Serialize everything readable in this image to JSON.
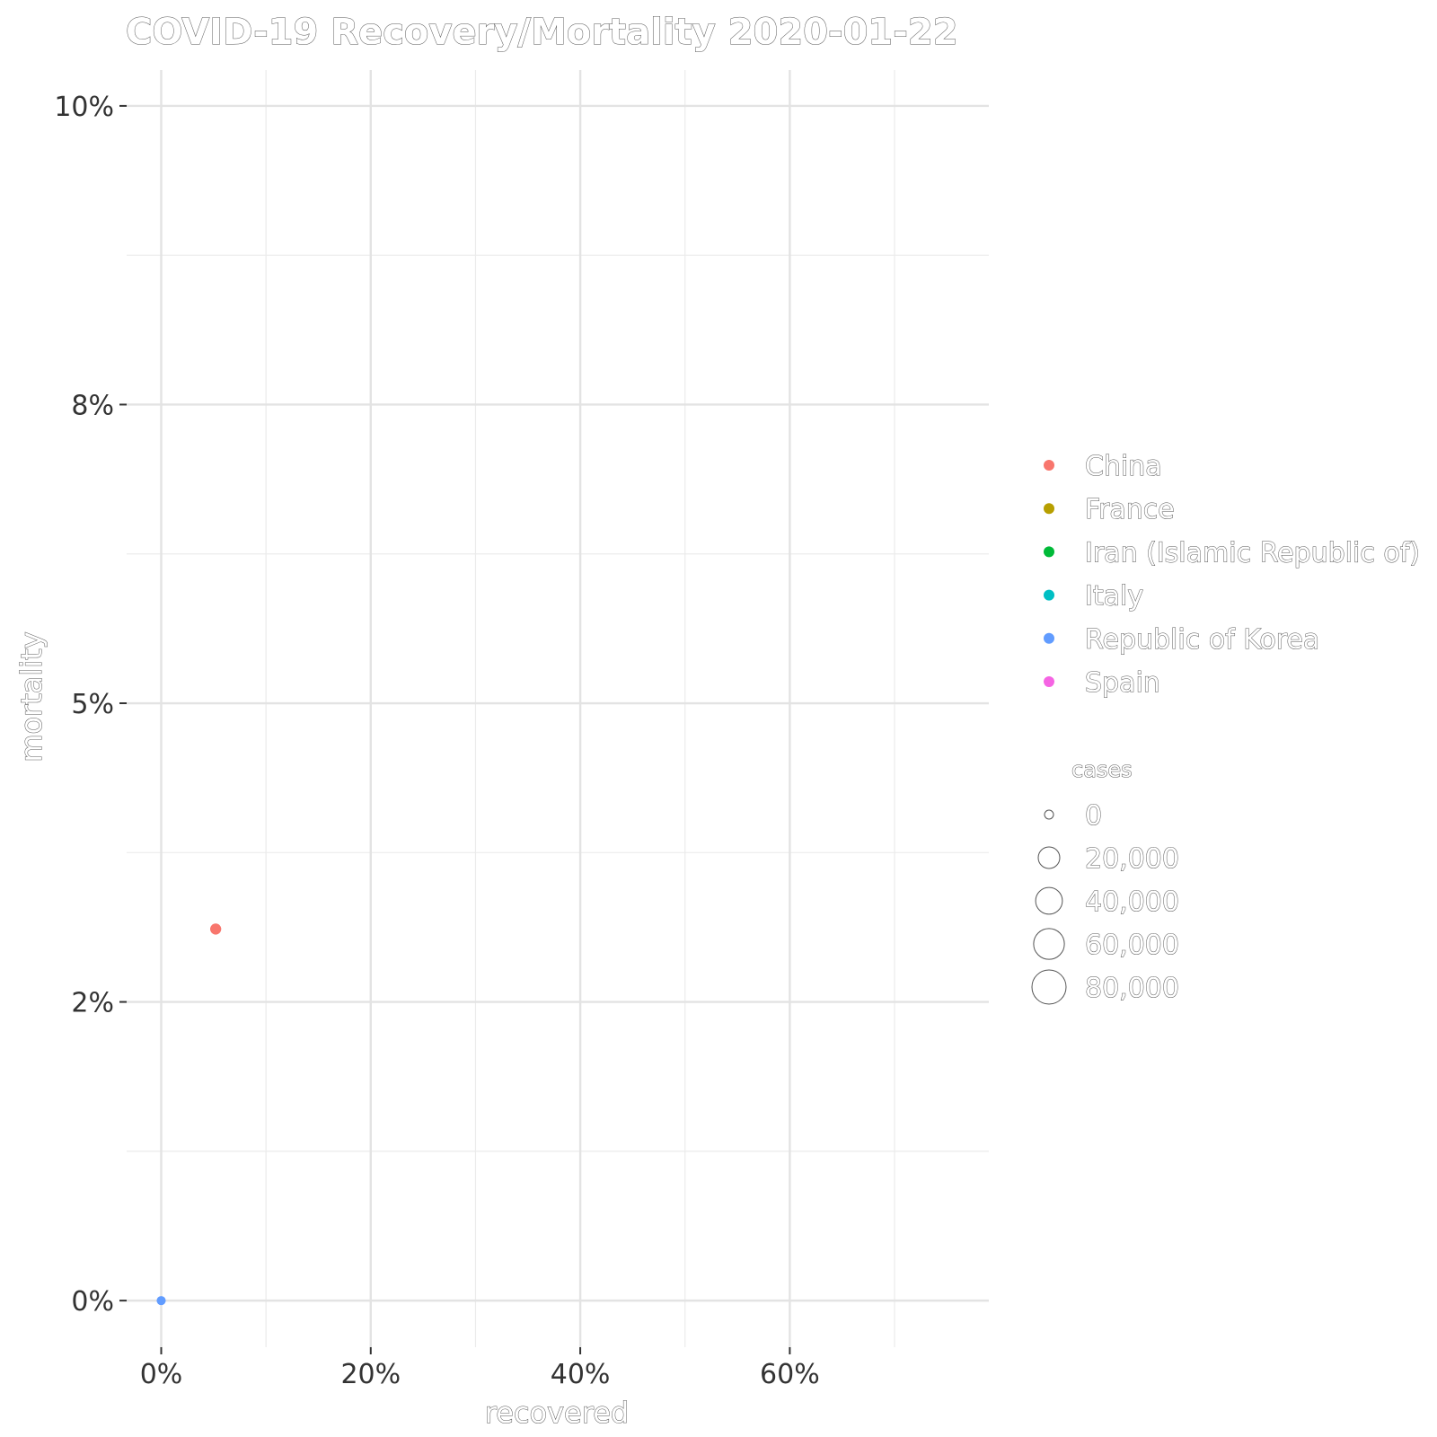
{
  "chart_data": {
    "type": "scatter",
    "title": "COVID-19 Recovery/Mortality 2020-01-22",
    "xlabel": "recovered",
    "ylabel": "mortality",
    "xlim": [
      -0.033,
      0.79
    ],
    "ylim": [
      -0.0039,
      0.103
    ],
    "x_ticks": [
      {
        "value": 0.0,
        "label": "0%"
      },
      {
        "value": 0.2,
        "label": "20%"
      },
      {
        "value": 0.4,
        "label": "40%"
      },
      {
        "value": 0.6,
        "label": "60%"
      }
    ],
    "x_minor": [
      0.1,
      0.3,
      0.5,
      0.7
    ],
    "y_ticks": [
      {
        "value": 0.0,
        "label": "0%"
      },
      {
        "value": 0.025,
        "label": "2%"
      },
      {
        "value": 0.05,
        "label": "5%"
      },
      {
        "value": 0.075,
        "label": "8%"
      },
      {
        "value": 0.1,
        "label": "10%"
      }
    ],
    "y_minor": [
      0.0125,
      0.0375,
      0.0625,
      0.0875
    ],
    "grid": true,
    "legend_position": "right",
    "color_legend": [
      {
        "name": "China",
        "color": "#F8766D"
      },
      {
        "name": "France",
        "color": "#B79F00"
      },
      {
        "name": "Iran (Islamic Republic of)",
        "color": "#00BA38"
      },
      {
        "name": "Italy",
        "color": "#00BFC4"
      },
      {
        "name": "Republic of Korea",
        "color": "#619CFF"
      },
      {
        "name": "Spain",
        "color": "#F564E3"
      }
    ],
    "size_legend": {
      "title": "cases",
      "entries": [
        {
          "value": 0,
          "label": "0"
        },
        {
          "value": 20000,
          "label": "20,000"
        },
        {
          "value": 40000,
          "label": "40,000"
        },
        {
          "value": 60000,
          "label": "60,000"
        },
        {
          "value": 80000,
          "label": "80,000"
        }
      ]
    },
    "points": [
      {
        "series": "China",
        "x": 0.052,
        "y": 0.0311,
        "cases": 548
      },
      {
        "series": "Republic of Korea",
        "x": 0.0,
        "y": 0.0,
        "cases": 1
      }
    ]
  }
}
